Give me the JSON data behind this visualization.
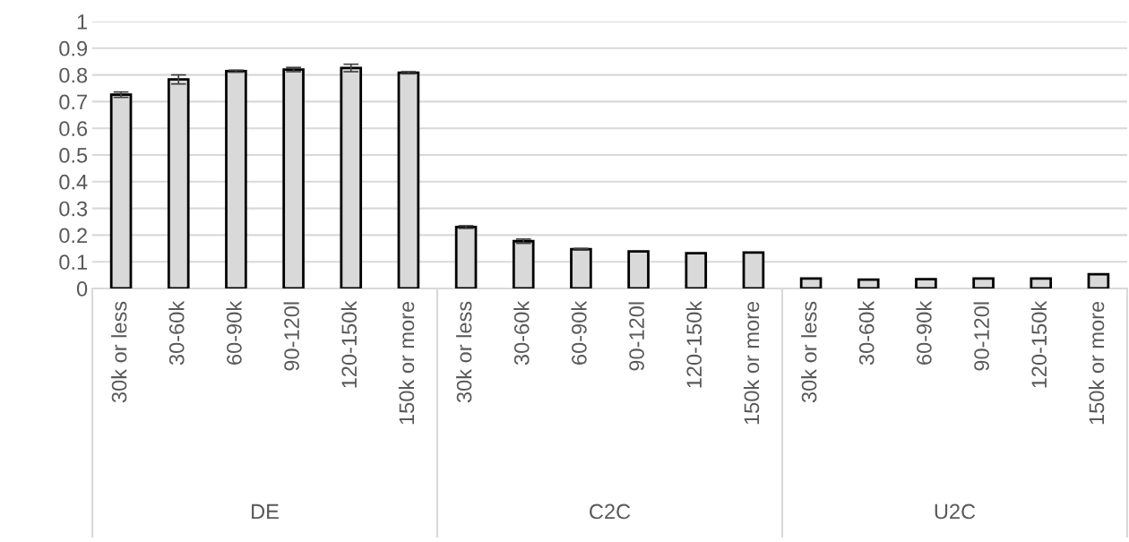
{
  "chart_data": {
    "type": "bar",
    "categories": [
      "30k or less",
      "30-60k",
      "60-90k",
      "90-120l",
      "120-150k",
      "150k or more",
      "30k or less",
      "30-60k",
      "60-90k",
      "90-120l",
      "120-150k",
      "150k or more",
      "30k or less",
      "30-60k",
      "60-90k",
      "90-120l",
      "120-150k",
      "150k or more"
    ],
    "values": [
      0.726,
      0.783,
      0.814,
      0.82,
      0.826,
      0.808,
      0.23,
      0.177,
      0.147,
      0.139,
      0.132,
      0.135,
      0.037,
      0.033,
      0.035,
      0.037,
      0.037,
      0.053
    ],
    "errors": [
      0.01,
      0.017,
      0.004,
      0.008,
      0.014,
      0.004,
      0.005,
      0.008,
      0.003,
      null,
      null,
      null,
      null,
      null,
      null,
      null,
      null,
      null
    ],
    "color": "#d9d9d9",
    "annotations": [
      "DE",
      "C2C",
      "U2C"
    ],
    "ylim": [
      0,
      1
    ],
    "yticks": [
      0,
      0.1,
      0.2,
      0.3,
      0.4,
      0.5,
      0.6,
      0.7,
      0.8,
      0.9,
      1
    ],
    "grid": "y"
  }
}
